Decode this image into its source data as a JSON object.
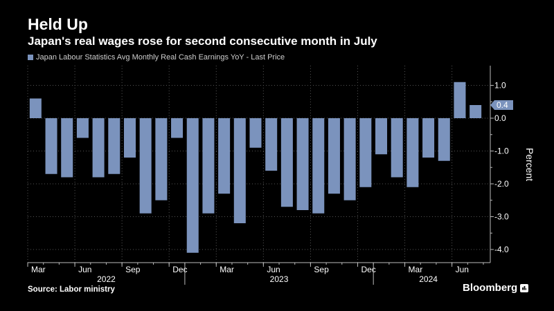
{
  "header": {
    "title": "Held Up",
    "subtitle": "Japan's real wages rose for second consecutive month in July"
  },
  "legend": {
    "label": "Japan Labour Statistics Avg Monthly Real Cash Earnings YoY - Last Price"
  },
  "footer": {
    "source": "Source: Labor ministry",
    "brand": "Bloomberg"
  },
  "colors": {
    "bar": "#7b93bd",
    "background": "#000000",
    "grid": "#555555",
    "text": "#ffffff"
  },
  "chart_data": {
    "type": "bar",
    "title": "Held Up",
    "subtitle": "Japan's real wages rose for second consecutive month in July",
    "ylabel": "Percent",
    "xlabel": "",
    "ylim": [
      -4.4,
      1.6
    ],
    "yticks": [
      1.0,
      0.0,
      -1.0,
      -2.0,
      -3.0,
      -4.0
    ],
    "ytick_labels": [
      "1.0",
      "0.0",
      "-1.0",
      "-2.0",
      "-3.0",
      "-4.0"
    ],
    "last_value_label": "0.4",
    "categories": [
      "2022-03",
      "2022-04",
      "2022-05",
      "2022-06",
      "2022-07",
      "2022-08",
      "2022-09",
      "2022-10",
      "2022-11",
      "2022-12",
      "2023-01",
      "2023-02",
      "2023-03",
      "2023-04",
      "2023-05",
      "2023-06",
      "2023-07",
      "2023-08",
      "2023-09",
      "2023-10",
      "2023-11",
      "2023-12",
      "2024-01",
      "2024-02",
      "2024-03",
      "2024-04",
      "2024-05",
      "2024-06",
      "2024-07"
    ],
    "values": [
      0.6,
      -1.7,
      -1.8,
      -0.6,
      -1.8,
      -1.7,
      -1.2,
      -2.9,
      -2.5,
      -0.6,
      -4.1,
      -2.9,
      -2.3,
      -3.2,
      -0.9,
      -1.6,
      -2.7,
      -2.8,
      -2.9,
      -2.3,
      -2.5,
      -2.1,
      -1.1,
      -1.8,
      -2.1,
      -1.2,
      -1.3,
      1.1,
      0.4
    ],
    "x_month_ticks": [
      {
        "index": 0,
        "label": "Mar"
      },
      {
        "index": 3,
        "label": "Jun"
      },
      {
        "index": 6,
        "label": "Sep"
      },
      {
        "index": 9,
        "label": "Dec"
      },
      {
        "index": 12,
        "label": "Mar"
      },
      {
        "index": 15,
        "label": "Jun"
      },
      {
        "index": 18,
        "label": "Sep"
      },
      {
        "index": 21,
        "label": "Dec"
      },
      {
        "index": 24,
        "label": "Mar"
      },
      {
        "index": 27,
        "label": "Jun"
      }
    ],
    "x_year_labels": [
      {
        "start": 0,
        "end": 9,
        "label": "2022"
      },
      {
        "start": 10,
        "end": 21,
        "label": "2023"
      },
      {
        "start": 22,
        "end": 28,
        "label": "2024"
      }
    ],
    "grid": true,
    "legend_position": "top-left"
  }
}
